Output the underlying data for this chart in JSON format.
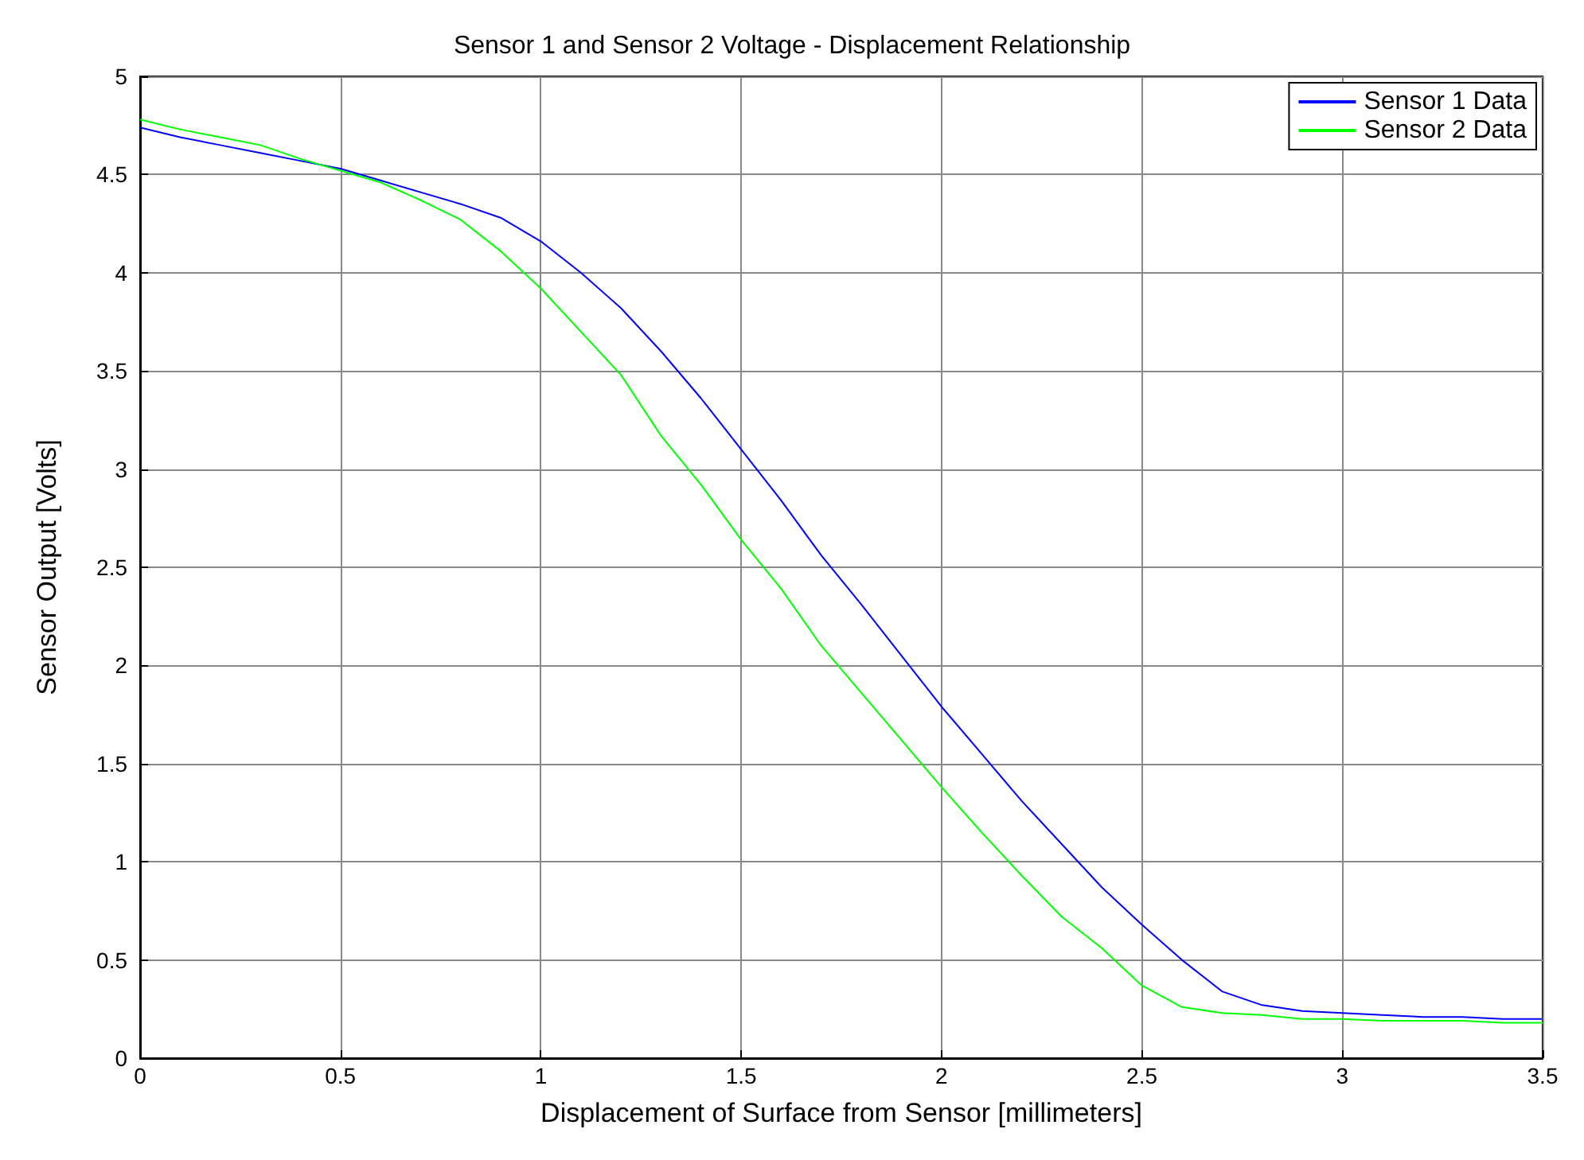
{
  "chart_data": {
    "type": "line",
    "title": "Sensor 1 and Sensor 2 Voltage - Displacement Relationship",
    "xlabel": "Displacement of Surface from Sensor [millimeters]",
    "ylabel": "Sensor Output [Volts]",
    "x": [
      0,
      0.1,
      0.2,
      0.3,
      0.4,
      0.5,
      0.6,
      0.7,
      0.8,
      0.9,
      1.0,
      1.1,
      1.2,
      1.3,
      1.4,
      1.5,
      1.6,
      1.7,
      1.8,
      1.9,
      2.0,
      2.1,
      2.2,
      2.3,
      2.4,
      2.5,
      2.6,
      2.7,
      2.8,
      2.9,
      3.0,
      3.1,
      3.2,
      3.3,
      3.4,
      3.5
    ],
    "series": [
      {
        "name": "Sensor 1 Data",
        "color": "#0000ff",
        "values": [
          4.74,
          4.69,
          4.65,
          4.61,
          4.57,
          4.53,
          4.47,
          4.41,
          4.35,
          4.28,
          4.16,
          4.0,
          3.82,
          3.6,
          3.36,
          3.1,
          2.84,
          2.56,
          2.31,
          2.05,
          1.79,
          1.55,
          1.31,
          1.09,
          0.87,
          0.68,
          0.5,
          0.34,
          0.27,
          0.24,
          0.23,
          0.22,
          0.21,
          0.21,
          0.2,
          0.2
        ]
      },
      {
        "name": "Sensor 2 Data",
        "color": "#00ff00",
        "values": [
          4.78,
          4.73,
          4.69,
          4.65,
          4.58,
          4.52,
          4.46,
          4.37,
          4.27,
          4.11,
          3.92,
          3.7,
          3.48,
          3.17,
          2.92,
          2.64,
          2.39,
          2.1,
          1.86,
          1.62,
          1.38,
          1.15,
          0.93,
          0.72,
          0.56,
          0.37,
          0.26,
          0.23,
          0.22,
          0.2,
          0.2,
          0.19,
          0.19,
          0.19,
          0.18,
          0.18
        ]
      }
    ],
    "xlim": [
      0,
      3.5
    ],
    "xticks": [
      0,
      0.5,
      1,
      1.5,
      2,
      2.5,
      3,
      3.5
    ],
    "ylim": [
      0,
      5
    ],
    "yticks": [
      0,
      0.5,
      1,
      1.5,
      2,
      2.5,
      3,
      3.5,
      4,
      4.5,
      5
    ],
    "grid": true,
    "legend": "top right",
    "marker": "none",
    "line_style": "solid"
  }
}
